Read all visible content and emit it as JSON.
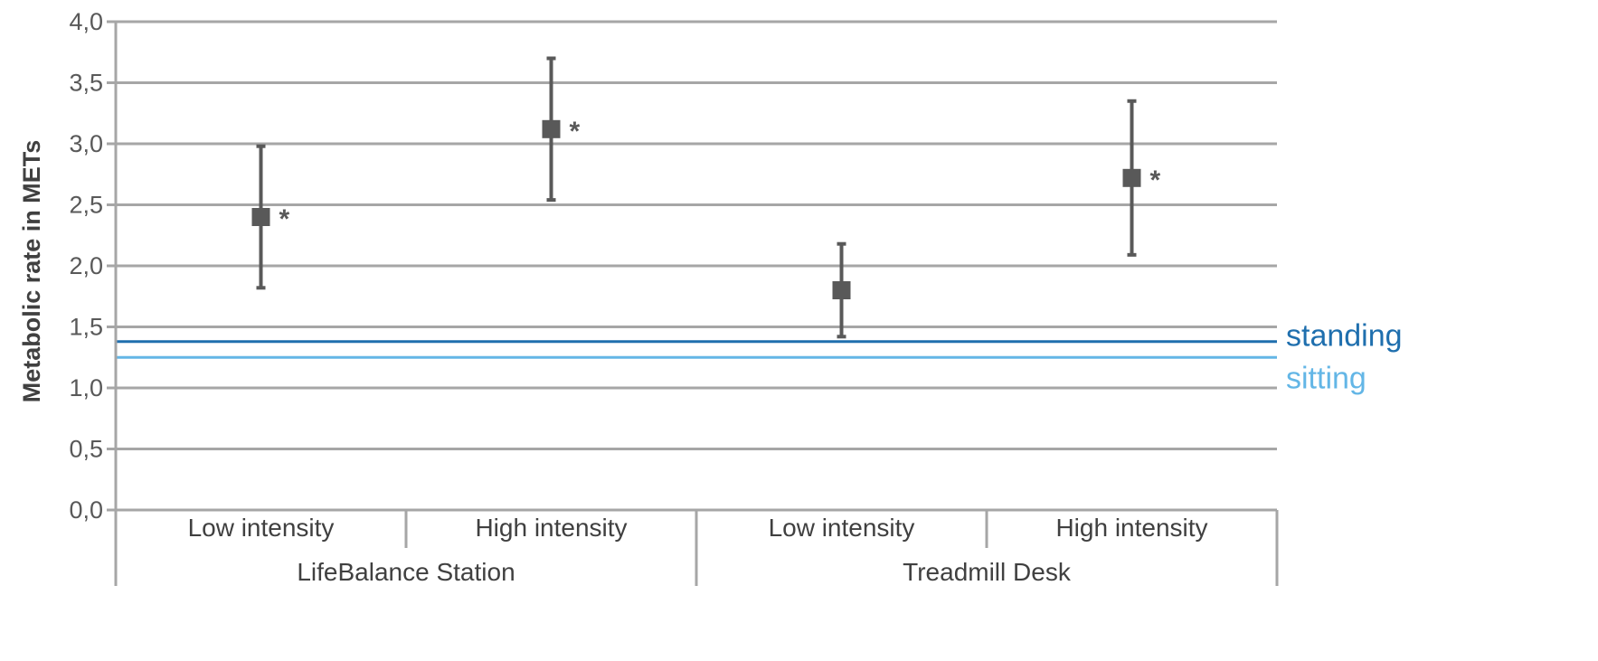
{
  "chart_data": {
    "type": "scatter",
    "ylabel": "Metabolic rate in METs",
    "ylim": [
      0,
      4
    ],
    "ytick_step": 0.5,
    "yticks": [
      "0,0",
      "0,5",
      "1,0",
      "1,5",
      "2,0",
      "2,5",
      "3,0",
      "3,5",
      "4,0"
    ],
    "grid": true,
    "categories": [
      "Low intensity",
      "High intensity",
      "Low intensity",
      "High intensity"
    ],
    "groups": [
      {
        "label": "LifeBalance Station",
        "categories": [
          "Low intensity",
          "High intensity"
        ]
      },
      {
        "label": "Treadmill Desk",
        "categories": [
          "Low intensity",
          "High intensity"
        ]
      }
    ],
    "points": [
      {
        "group": "LifeBalance Station",
        "category": "Low intensity",
        "mean": 2.4,
        "lower": 1.82,
        "upper": 2.98,
        "significance": "*"
      },
      {
        "group": "LifeBalance Station",
        "category": "High intensity",
        "mean": 3.12,
        "lower": 2.54,
        "upper": 3.7,
        "significance": "*"
      },
      {
        "group": "Treadmill Desk",
        "category": "Low intensity",
        "mean": 1.8,
        "lower": 1.42,
        "upper": 2.18,
        "significance": ""
      },
      {
        "group": "Treadmill Desk",
        "category": "High intensity",
        "mean": 2.72,
        "lower": 2.09,
        "upper": 3.35,
        "significance": "*"
      }
    ],
    "reference_lines": [
      {
        "label": "standing",
        "value": 1.38,
        "color": "#1f6fae"
      },
      {
        "label": "sitting",
        "value": 1.25,
        "color": "#63b6e6"
      }
    ],
    "colors": {
      "marker": "#595959",
      "grid": "#a6a6a6"
    }
  }
}
